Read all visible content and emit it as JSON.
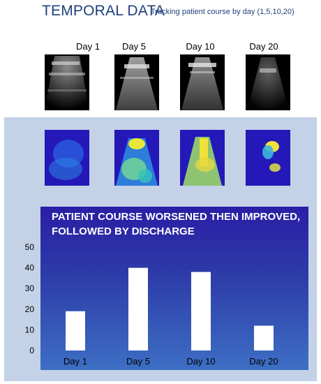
{
  "header": {
    "title": "TEMPORAL DATA",
    "subtitle": "Tracking patient course by day (1,5,10,20)"
  },
  "days": [
    "Day 1",
    "Day 5",
    "Day 10",
    "Day 20"
  ],
  "chart_data": {
    "type": "bar",
    "title": "PATIENT COURSE WORSENED THEN IMPROVED, FOLLOWED BY DISCHARGE",
    "categories": [
      "Day 1",
      "Day 5",
      "Day 10",
      "Day 20"
    ],
    "values": [
      19,
      40,
      38,
      12
    ],
    "ylim": [
      0,
      50
    ],
    "yticks": [
      0,
      10,
      20,
      30,
      40,
      50
    ],
    "grid": false,
    "legend": "none",
    "bar_color": "#ffffff",
    "background_gradient": [
      "#2a1ea6",
      "#3d6fc4"
    ]
  },
  "colors": {
    "title": "#1f3f7a",
    "panel": "#c3d2e7",
    "heatmap_base": "#2418b8"
  }
}
